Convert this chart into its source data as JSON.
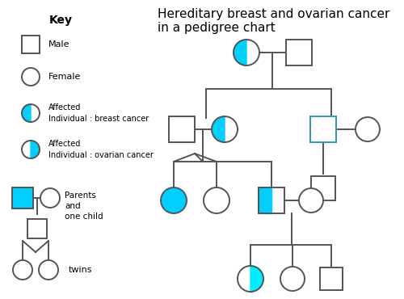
{
  "title": "Hereditary breast and ovarian cancer\nin a pedigree chart",
  "bg_color": "#ffffff",
  "line_color": "#555555",
  "cyan_bright": "#00CFFF",
  "cyan_full": "#00BFFF",
  "lw": 1.4,
  "key_title": "Key",
  "key_labels": [
    "Male",
    "Female",
    "Affected\nIndividual : breast cancer",
    "Affected\nIndividual : ovarian cancer",
    "Parents\nand\none child",
    "twins"
  ]
}
